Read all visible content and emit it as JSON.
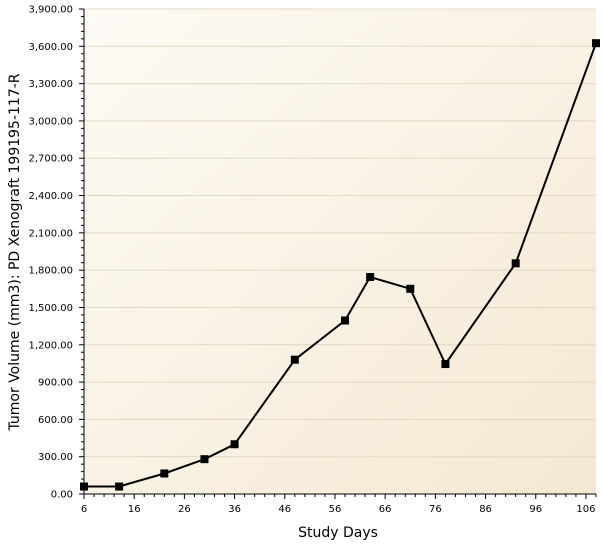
{
  "chart_data": {
    "type": "line",
    "xlabel": "Study Days",
    "ylabel": "Tumor Volume (mm3): PD Xenograft 199195-117-R",
    "xlim": [
      6,
      108
    ],
    "ylim": [
      0,
      3900
    ],
    "x_ticks": [
      6,
      16,
      26,
      36,
      46,
      56,
      66,
      76,
      86,
      96,
      106
    ],
    "x_tick_labels": [
      "6",
      "16",
      "26",
      "36",
      "46",
      "56",
      "66",
      "76",
      "86",
      "96",
      "106"
    ],
    "y_ticks": [
      0,
      300,
      600,
      900,
      1200,
      1500,
      1800,
      2100,
      2400,
      2700,
      3000,
      3300,
      3600,
      3900
    ],
    "y_tick_labels": [
      "0.00",
      "300.00",
      "600.00",
      "900.00",
      "1,200.00",
      "1,500.00",
      "1,800.00",
      "2,100.00",
      "2,400.00",
      "2,700.00",
      "3,000.00",
      "3,300.00",
      "3,600.00",
      "3,900.00"
    ],
    "grid": true,
    "series": [
      {
        "x": [
          6,
          13,
          22,
          30,
          36,
          48,
          58,
          63,
          71,
          78,
          92,
          108
        ],
        "y": [
          60,
          60,
          165,
          280,
          400,
          1080,
          1395,
          1745,
          1650,
          1045,
          1855,
          3625
        ]
      }
    ],
    "colors": {
      "background_light": "#fdfbf5",
      "background_dark": "#f5e8d2",
      "grid": "#e3d7c0",
      "line": "#000000"
    }
  }
}
